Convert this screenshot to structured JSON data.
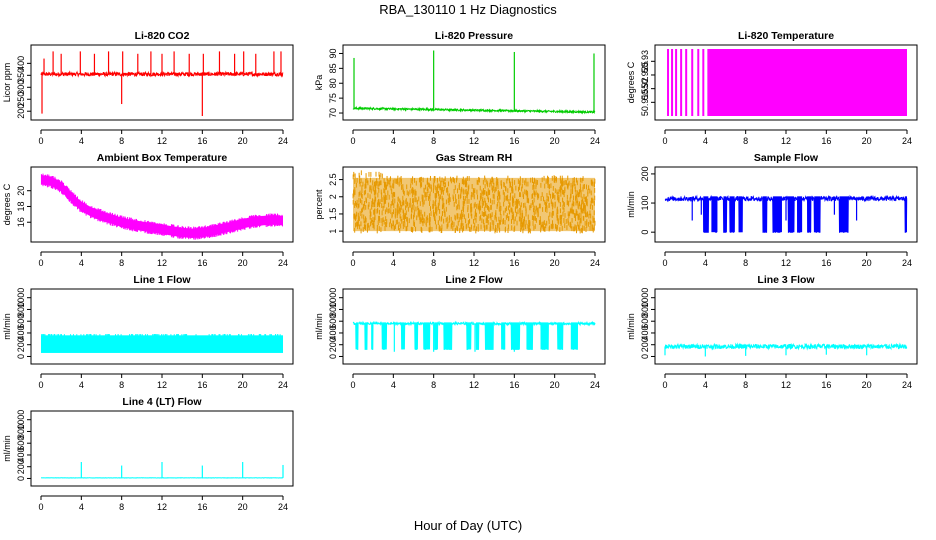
{
  "figure": {
    "title": "RBA_130110  1 Hz Diagnostics",
    "xlabel": "Hour of Day (UTC)"
  },
  "chart_data": [
    {
      "type": "line",
      "title": "Li-820 CO2",
      "ylabel": "Licor ppm",
      "xlim": [
        0,
        24
      ],
      "xticks": [
        0,
        4,
        8,
        12,
        16,
        20,
        24
      ],
      "ylim": [
        180,
        460
      ],
      "yticks": [
        200,
        250,
        300,
        350,
        400
      ],
      "color": "#ff0000",
      "series": [
        {
          "base": 355,
          "noise": 8,
          "spikes": [
            [
              0.1,
              190
            ],
            [
              0.3,
              420
            ],
            [
              1.2,
              450
            ],
            [
              2.0,
              440
            ],
            [
              3.9,
              450
            ],
            [
              5.3,
              440
            ],
            [
              6.7,
              450
            ],
            [
              8.0,
              230
            ],
            [
              8.1,
              450
            ],
            [
              9.6,
              440
            ],
            [
              10.9,
              450
            ],
            [
              12.0,
              440
            ],
            [
              13.2,
              450
            ],
            [
              14.7,
              440
            ],
            [
              16.0,
              180
            ],
            [
              16.1,
              440
            ],
            [
              17.7,
              450
            ],
            [
              19.2,
              440
            ],
            [
              20.1,
              450
            ],
            [
              21.3,
              440
            ],
            [
              23.1,
              450
            ],
            [
              23.8,
              450
            ]
          ]
        }
      ]
    },
    {
      "type": "line",
      "title": "Li-820 Pressure",
      "ylabel": "kPa",
      "xlim": [
        0,
        24
      ],
      "xticks": [
        0,
        4,
        8,
        12,
        16,
        20,
        24
      ],
      "ylim": [
        69,
        91.5
      ],
      "yticks": [
        70,
        75,
        80,
        85,
        90
      ],
      "color": "#00cc00",
      "series": [
        {
          "start": 71.6,
          "end": 70.3,
          "noise": 0.3,
          "spikes": [
            [
              0.1,
              88.5
            ],
            [
              8.0,
              91
            ],
            [
              16.0,
              90.5
            ],
            [
              23.9,
              90
            ]
          ]
        }
      ]
    },
    {
      "type": "area",
      "title": "Li-820 Temperature",
      "ylabel": "degrees C",
      "xlim": [
        0,
        24
      ],
      "xticks": [
        0,
        4,
        8,
        12,
        16,
        20,
        24
      ],
      "ylim": [
        50.91,
        50.9345
      ],
      "yticks": [
        50.915,
        50.92,
        50.925,
        50.93
      ],
      "color": "#ff00ff",
      "series": [
        {
          "fill_from": 4.2,
          "stripes": [
            0.3,
            0.7,
            1.1,
            1.6,
            2.1,
            2.7,
            3.3,
            3.8
          ]
        }
      ]
    },
    {
      "type": "line",
      "title": "Ambient Box Temperature",
      "ylabel": "degrees C",
      "xlim": [
        0,
        24
      ],
      "xticks": [
        0,
        4,
        8,
        12,
        16,
        20,
        24
      ],
      "ylim": [
        14,
        22.5
      ],
      "yticks": [
        16,
        18,
        20
      ],
      "color": "#ff00ff",
      "series": [
        {
          "points": [
            [
              0,
              21.4
            ],
            [
              1,
              21.2
            ],
            [
              2,
              20.5
            ],
            [
              3,
              19.2
            ],
            [
              4,
              18.0
            ],
            [
              5,
              17.3
            ],
            [
              6,
              16.8
            ],
            [
              7,
              16.4
            ],
            [
              8,
              16.0
            ],
            [
              9,
              15.7
            ],
            [
              10,
              15.5
            ],
            [
              11,
              15.3
            ],
            [
              12,
              15.1
            ],
            [
              13,
              14.9
            ],
            [
              14,
              14.7
            ],
            [
              15,
              14.6
            ],
            [
              16,
              14.7
            ],
            [
              17,
              14.9
            ],
            [
              18,
              15.2
            ],
            [
              19,
              15.5
            ],
            [
              20,
              15.8
            ],
            [
              21,
              16.1
            ],
            [
              22,
              16.2
            ],
            [
              23,
              16.3
            ],
            [
              24,
              16.2
            ]
          ],
          "band": 0.6
        }
      ]
    },
    {
      "type": "scatter",
      "title": "Gas Stream RH",
      "ylabel": "percent",
      "xlim": [
        0,
        24
      ],
      "xticks": [
        0,
        4,
        8,
        12,
        16,
        20,
        24
      ],
      "ylim": [
        0.8,
        2.75
      ],
      "yticks": [
        1.0,
        1.5,
        2.0,
        2.5
      ],
      "color": "#e69900",
      "series": [
        {
          "low": 1.0,
          "high": 2.55,
          "high_start": 2.7
        }
      ]
    },
    {
      "type": "line",
      "title": "Sample Flow",
      "ylabel": "ml/min",
      "xlim": [
        0,
        24
      ],
      "xticks": [
        0,
        4,
        8,
        12,
        16,
        20,
        24
      ],
      "ylim": [
        -20,
        210
      ],
      "yticks": [
        0,
        100,
        200
      ],
      "color": "#0000ff",
      "series": [
        {
          "base": 115,
          "noise": 8,
          "drop_value": 0,
          "drop_ranges": [
            [
              3.8,
              4.3
            ],
            [
              4.6,
              5.2
            ],
            [
              5.8,
              6.1
            ],
            [
              6.4,
              6.9
            ],
            [
              7.3,
              7.7
            ],
            [
              9.7,
              10.1
            ],
            [
              10.7,
              11.6
            ],
            [
              12.2,
              12.8
            ],
            [
              13.1,
              13.6
            ],
            [
              14.1,
              14.5
            ],
            [
              14.8,
              15.4
            ],
            [
              17.3,
              18.2
            ],
            [
              23.8,
              24
            ]
          ],
          "spikes": [
            [
              2.7,
              40
            ],
            [
              3.6,
              60
            ],
            [
              12.0,
              40
            ],
            [
              16.8,
              60
            ],
            [
              19.0,
              40
            ]
          ]
        }
      ]
    },
    {
      "type": "line",
      "title": "Line 1 Flow",
      "ylabel": "ml/min",
      "xlim": [
        0,
        24
      ],
      "xticks": [
        0,
        4,
        8,
        12,
        16,
        20,
        24
      ],
      "ylim": [
        -60,
        1080
      ],
      "yticks": [
        0,
        200,
        400,
        600,
        800,
        1000
      ],
      "color": "#00ffff",
      "series": [
        {
          "low": 60,
          "high": 360
        }
      ]
    },
    {
      "type": "line",
      "title": "Line 2 Flow",
      "ylabel": "ml/min",
      "xlim": [
        0,
        24
      ],
      "xticks": [
        0,
        4,
        8,
        12,
        16,
        20,
        24
      ],
      "ylim": [
        -60,
        1080
      ],
      "yticks": [
        0,
        200,
        400,
        600,
        800,
        1000
      ],
      "color": "#00ffff",
      "series": [
        {
          "base": 560,
          "noise": 20,
          "drop_value": 120,
          "drop_ranges": [
            [
              0.3,
              0.5
            ],
            [
              1.2,
              1.4
            ],
            [
              1.8,
              2.0
            ],
            [
              2.9,
              3.3
            ],
            [
              4.8,
              5.1
            ],
            [
              6.1,
              6.4
            ],
            [
              7.0,
              7.6
            ],
            [
              8.1,
              8.4
            ],
            [
              9.0,
              9.8
            ],
            [
              11.3,
              11.7
            ],
            [
              12.2,
              12.5
            ],
            [
              13.1,
              13.9
            ],
            [
              14.7,
              15.1
            ],
            [
              15.7,
              16.5
            ],
            [
              17.2,
              17.8
            ],
            [
              18.6,
              19.4
            ],
            [
              20.3,
              20.8
            ],
            [
              21.6,
              22.3
            ]
          ],
          "spikes": [
            [
              4.1,
              80
            ],
            [
              8.0,
              80
            ],
            [
              12.1,
              80
            ],
            [
              16.0,
              80
            ]
          ]
        }
      ]
    },
    {
      "type": "line",
      "title": "Line 3 Flow",
      "ylabel": "ml/min",
      "xlim": [
        0,
        24
      ],
      "xticks": [
        0,
        4,
        8,
        12,
        16,
        20,
        24
      ],
      "ylim": [
        -60,
        1080
      ],
      "yticks": [
        0,
        200,
        400,
        600,
        800,
        1000
      ],
      "color": "#00ffff",
      "series": [
        {
          "base": 170,
          "noise": 40,
          "spikes": [
            [
              0,
              20
            ],
            [
              4.0,
              0
            ],
            [
              8.0,
              10
            ],
            [
              12.0,
              20
            ],
            [
              16.0,
              30
            ],
            [
              20.0,
              20
            ]
          ]
        }
      ]
    },
    {
      "type": "line",
      "title": "Line 4 (LT) Flow",
      "ylabel": "ml/min",
      "xlim": [
        0,
        24
      ],
      "xticks": [
        0,
        4,
        8,
        12,
        16,
        20,
        24
      ],
      "ylim": [
        -60,
        1080
      ],
      "yticks": [
        0,
        200,
        400,
        600,
        800,
        1000
      ],
      "color": "#00ffff",
      "series": [
        {
          "base": 10,
          "noise": 2,
          "spikes": [
            [
              4.0,
              280
            ],
            [
              8.0,
              220
            ],
            [
              12.0,
              280
            ],
            [
              16.0,
              220
            ],
            [
              20.0,
              280
            ],
            [
              24.0,
              230
            ]
          ]
        }
      ]
    }
  ]
}
